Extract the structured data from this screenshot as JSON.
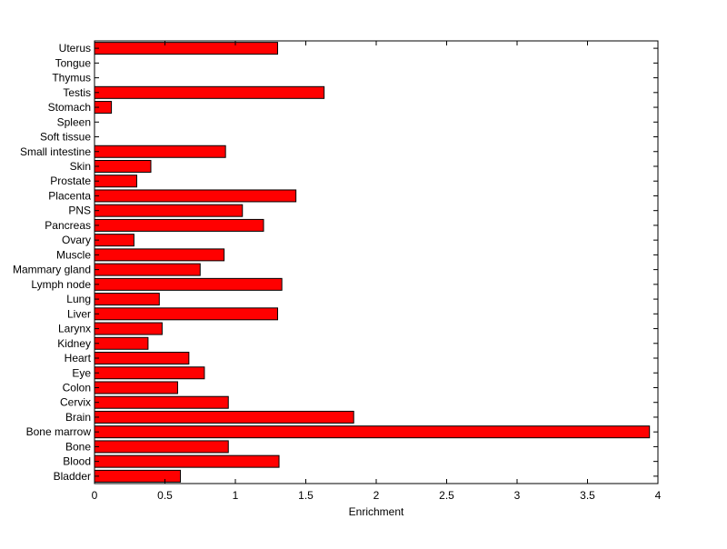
{
  "chart_data": {
    "type": "bar",
    "orientation": "horizontal",
    "categories": [
      "Uterus",
      "Tongue",
      "Thymus",
      "Testis",
      "Stomach",
      "Spleen",
      "Soft tissue",
      "Small intestine",
      "Skin",
      "Prostate",
      "Placenta",
      "PNS",
      "Pancreas",
      "Ovary",
      "Muscle",
      "Mammary gland",
      "Lymph node",
      "Lung",
      "Liver",
      "Larynx",
      "Kidney",
      "Heart",
      "Eye",
      "Colon",
      "Cervix",
      "Brain",
      "Bone marrow",
      "Bone",
      "Blood",
      "Bladder"
    ],
    "values": [
      1.3,
      0,
      0,
      1.63,
      0.12,
      0,
      0,
      0.93,
      0.4,
      0.3,
      1.43,
      1.05,
      1.2,
      0.28,
      0.92,
      0.75,
      1.33,
      0.46,
      1.3,
      0.48,
      0.38,
      0.67,
      0.78,
      0.59,
      0.95,
      1.84,
      3.94,
      0.95,
      1.31,
      0.61
    ],
    "title": "",
    "xlabel": "Enrichment",
    "ylabel": "",
    "xlim": [
      0,
      4
    ],
    "x_ticks": [
      0,
      0.5,
      1,
      1.5,
      2,
      2.5,
      3,
      3.5,
      4
    ],
    "x_tick_labels": [
      "0",
      "0.5",
      "1",
      "1.5",
      "2",
      "2.5",
      "3",
      "3.5",
      "4"
    ],
    "grid": false,
    "bar_color": "#ff0000",
    "bar_edge_color": "#000000"
  }
}
